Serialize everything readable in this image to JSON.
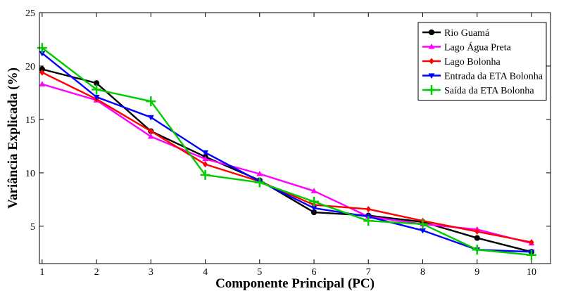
{
  "chart_data": {
    "type": "line",
    "title": "",
    "xlabel": "Componente Principal (PC)",
    "ylabel": "Variância Explicada (%)",
    "x": [
      1,
      2,
      3,
      4,
      5,
      6,
      7,
      8,
      9,
      10
    ],
    "xlim": [
      0.95,
      10.35
    ],
    "ylim": [
      1.5,
      25
    ],
    "xticks": [
      "1",
      "2",
      "3",
      "4",
      "5",
      "6",
      "7",
      "8",
      "9",
      "10"
    ],
    "yticks": [
      5,
      10,
      15,
      20,
      25
    ],
    "grid": false,
    "legend": "top-right",
    "series": [
      {
        "name": "Rio Guamá",
        "color": "#000000",
        "marker": "circle",
        "values": [
          19.7,
          18.4,
          13.9,
          11.5,
          9.3,
          6.3,
          6.0,
          5.4,
          3.9,
          2.6
        ]
      },
      {
        "name": "Lago Água Preta",
        "color": "#ff00ff",
        "marker": "triangle-up",
        "values": [
          18.3,
          16.8,
          13.4,
          11.3,
          9.9,
          8.3,
          5.9,
          5.2,
          4.7,
          3.4
        ]
      },
      {
        "name": "Lago Bolonha",
        "color": "#ff0000",
        "marker": "diamond",
        "values": [
          19.4,
          16.9,
          13.9,
          10.8,
          9.2,
          7.0,
          6.6,
          5.5,
          4.5,
          3.5
        ]
      },
      {
        "name": "Entrada da ETA Bolonha",
        "color": "#0000ff",
        "marker": "triangle-down",
        "values": [
          21.2,
          17.1,
          15.2,
          11.9,
          9.2,
          6.7,
          5.9,
          4.6,
          2.8,
          2.6
        ]
      },
      {
        "name": "Saída da ETA Bolonha",
        "color": "#00cc00",
        "marker": "plus",
        "values": [
          21.7,
          17.8,
          16.7,
          9.8,
          9.1,
          7.3,
          5.5,
          5.2,
          2.8,
          2.3
        ]
      }
    ]
  }
}
